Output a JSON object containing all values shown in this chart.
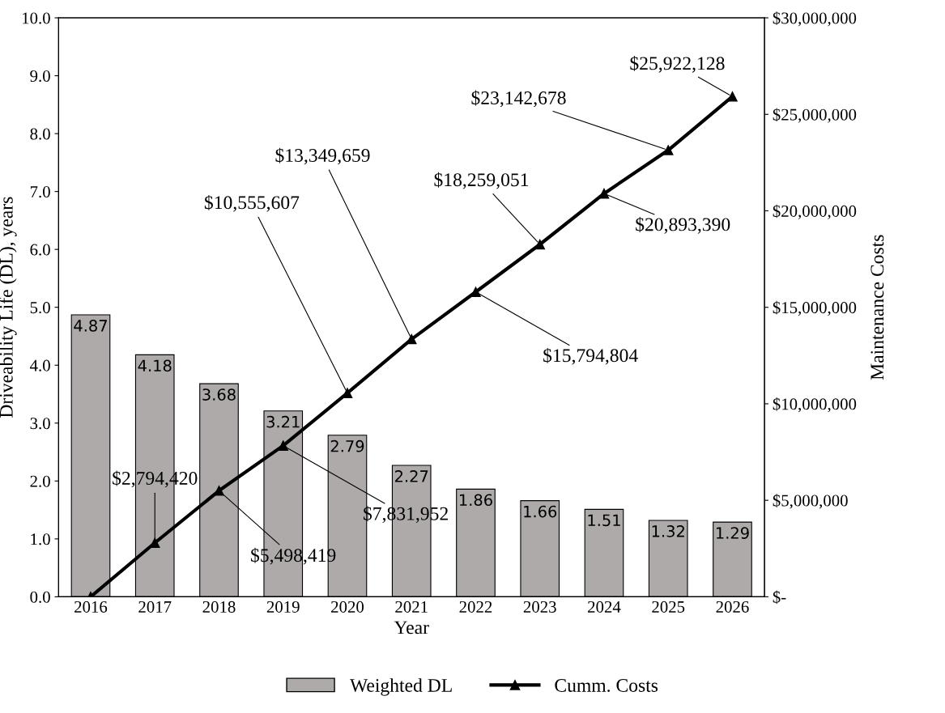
{
  "chart_data": {
    "type": "bar",
    "xlabel": "Year",
    "ylabel": "Driveability Life (DL), years",
    "y2label": "Maintenance Costs",
    "categories": [
      "2016",
      "2017",
      "2018",
      "2019",
      "2020",
      "2021",
      "2022",
      "2023",
      "2024",
      "2025",
      "2026"
    ],
    "series": [
      {
        "name": "Weighted DL",
        "color": "#aeaaaa",
        "values": [
          4.87,
          4.18,
          3.68,
          3.21,
          2.79,
          2.27,
          1.86,
          1.66,
          1.51,
          1.32,
          1.29
        ],
        "data_labels": true
      },
      {
        "name": "Cumm. Costs",
        "type": "line",
        "axis": "y2",
        "color": "#000000",
        "marker": "triangle",
        "line_style": "solid",
        "values": [
          0,
          2794420,
          5498419,
          7831952,
          10555607,
          13349659,
          15794804,
          18259051,
          20893390,
          23142678,
          25922128
        ],
        "value_labels": [
          null,
          "$2,794,420",
          "$5,498,419",
          "$7,831,952",
          "$10,555,607",
          "$13,349,659",
          "$15,794,804",
          "$18,259,051",
          "$20,893,390",
          "$23,142,678",
          "$25,922,128"
        ]
      }
    ],
    "ylim": [
      0,
      10
    ],
    "yticks": [
      {
        "value": 0,
        "label": "0.0"
      },
      {
        "value": 1,
        "label": "1.0"
      },
      {
        "value": 2,
        "label": "2.0"
      },
      {
        "value": 3,
        "label": "3.0"
      },
      {
        "value": 4,
        "label": "4.0"
      },
      {
        "value": 5,
        "label": "5.0"
      },
      {
        "value": 6,
        "label": "6.0"
      },
      {
        "value": 7,
        "label": "7.0"
      },
      {
        "value": 8,
        "label": "8.0"
      },
      {
        "value": 9,
        "label": "9.0"
      },
      {
        "value": 10,
        "label": "10.0"
      }
    ],
    "y2lim": [
      0,
      30000000
    ],
    "y2ticks": [
      {
        "value": 0,
        "label": "$-"
      },
      {
        "value": 5000000,
        "label": "$5,000,000"
      },
      {
        "value": 10000000,
        "label": "$10,000,000"
      },
      {
        "value": 15000000,
        "label": "$15,000,000"
      },
      {
        "value": 20000000,
        "label": "$20,000,000"
      },
      {
        "value": 25000000,
        "label": "$25,000,000"
      },
      {
        "value": 30000000,
        "label": "$30,000,000"
      }
    ],
    "grid": false,
    "legend": "bottom"
  }
}
